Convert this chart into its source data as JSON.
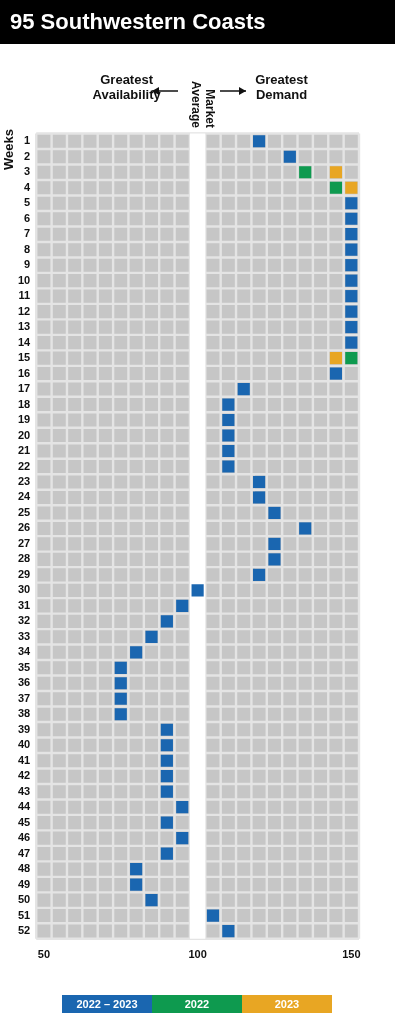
{
  "chart_data": {
    "type": "scatter",
    "title": "95 Southwestern Coasts",
    "ylabel": "Weeks",
    "orientation": "horizontal",
    "categories": [
      "1",
      "2",
      "3",
      "4",
      "5",
      "6",
      "7",
      "8",
      "9",
      "10",
      "11",
      "12",
      "13",
      "14",
      "15",
      "16",
      "17",
      "18",
      "19",
      "20",
      "21",
      "22",
      "23",
      "24",
      "25",
      "26",
      "27",
      "28",
      "29",
      "30",
      "31",
      "32",
      "33",
      "34",
      "35",
      "36",
      "37",
      "38",
      "39",
      "40",
      "41",
      "42",
      "43",
      "44",
      "45",
      "46",
      "47",
      "48",
      "49",
      "50",
      "51",
      "52"
    ],
    "xlim": [
      47.5,
      152.5
    ],
    "xticks": [
      50,
      100,
      150
    ],
    "marker": "square",
    "legend": "bottom",
    "ref_lines": [
      {
        "axis": "x",
        "value": 100,
        "label": "Market Average",
        "color": "#ffffff"
      }
    ],
    "annotations": [
      "Greatest Availability",
      "Greatest Demand"
    ],
    "series": [
      {
        "name": "2022 – 2023",
        "color": "#1a66b0",
        "values": [
          120,
          130,
          null,
          null,
          150,
          150,
          150,
          150,
          150,
          150,
          150,
          150,
          150,
          150,
          null,
          145,
          115,
          110,
          110,
          110,
          110,
          110,
          120,
          120,
          125,
          135,
          125,
          125,
          120,
          100,
          95,
          90,
          85,
          80,
          75,
          75,
          75,
          75,
          90,
          90,
          90,
          90,
          90,
          95,
          90,
          95,
          90,
          80,
          80,
          85,
          105,
          110
        ]
      },
      {
        "name": "2022",
        "color": "#0e9a4f",
        "values": [
          null,
          null,
          135,
          145,
          null,
          null,
          null,
          null,
          null,
          null,
          null,
          null,
          null,
          null,
          150,
          null,
          null,
          null,
          null,
          null,
          null,
          null,
          null,
          null,
          null,
          null,
          null,
          null,
          null,
          null,
          null,
          null,
          null,
          null,
          null,
          null,
          null,
          null,
          null,
          null,
          null,
          null,
          null,
          null,
          null,
          null,
          null,
          null,
          null,
          null,
          null,
          null
        ]
      },
      {
        "name": "2023",
        "color": "#e8a623",
        "values": [
          null,
          null,
          145,
          150,
          null,
          null,
          null,
          null,
          null,
          null,
          null,
          null,
          null,
          null,
          145,
          null,
          null,
          null,
          null,
          null,
          null,
          null,
          null,
          null,
          null,
          null,
          null,
          null,
          null,
          null,
          null,
          null,
          null,
          null,
          null,
          null,
          null,
          null,
          null,
          null,
          null,
          null,
          null,
          null,
          null,
          null,
          null,
          null,
          null,
          null,
          null,
          null
        ]
      }
    ]
  }
}
